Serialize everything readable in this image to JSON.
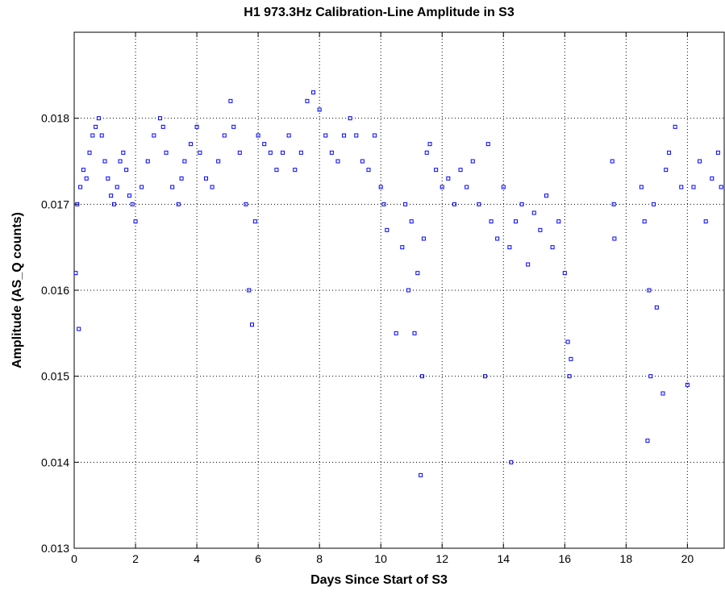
{
  "chart_data": {
    "type": "scatter",
    "title": "H1 973.3Hz Calibration-Line Amplitude in S3",
    "xlabel": "Days Since Start of S3",
    "ylabel": "Amplitude (AS_Q counts)",
    "color": "#0000ff",
    "grid": true,
    "xlim": [
      0,
      21.2
    ],
    "ylim": [
      0.013,
      0.019
    ],
    "xticks": [
      0,
      2,
      4,
      6,
      8,
      10,
      12,
      14,
      16,
      18,
      20
    ],
    "yticks": [
      0.013,
      0.014,
      0.015,
      0.016,
      0.017,
      0.018
    ],
    "x": [
      0.05,
      0.1,
      0.15,
      0.2,
      0.3,
      0.4,
      0.5,
      0.6,
      0.7,
      0.8,
      0.9,
      1.0,
      1.1,
      1.2,
      1.3,
      1.4,
      1.5,
      1.6,
      1.7,
      1.8,
      1.9,
      2.0,
      2.2,
      2.4,
      2.6,
      2.8,
      2.9,
      3.0,
      3.2,
      3.4,
      3.5,
      3.6,
      3.8,
      4.0,
      4.1,
      4.3,
      4.5,
      4.7,
      4.9,
      5.1,
      5.2,
      5.4,
      5.6,
      5.7,
      5.8,
      5.9,
      6.0,
      6.2,
      6.4,
      6.6,
      6.8,
      7.0,
      7.2,
      7.4,
      7.6,
      7.8,
      8.0,
      8.2,
      8.4,
      8.6,
      8.8,
      9.0,
      9.2,
      9.4,
      9.6,
      9.8,
      10.0,
      10.1,
      10.2,
      10.5,
      10.7,
      10.8,
      10.9,
      11.0,
      11.1,
      11.2,
      11.3,
      11.35,
      11.4,
      11.5,
      11.6,
      11.8,
      12.0,
      12.2,
      12.4,
      12.6,
      12.8,
      13.0,
      13.2,
      13.4,
      13.5,
      13.6,
      13.8,
      14.0,
      14.2,
      14.25,
      14.4,
      14.6,
      14.8,
      15.0,
      15.2,
      15.4,
      15.6,
      15.8,
      16.0,
      16.1,
      16.15,
      16.2,
      17.55,
      17.6,
      17.62,
      18.5,
      18.6,
      18.7,
      18.75,
      18.8,
      18.9,
      19.0,
      19.2,
      19.3,
      19.4,
      19.6,
      19.8,
      20.0,
      20.2,
      20.4,
      20.6,
      20.8,
      21.0,
      21.1
    ],
    "values": [
      0.0162,
      0.017,
      0.01555,
      0.0172,
      0.0174,
      0.0173,
      0.0176,
      0.0178,
      0.0179,
      0.018,
      0.0178,
      0.0175,
      0.0173,
      0.0171,
      0.017,
      0.0172,
      0.0175,
      0.0176,
      0.0174,
      0.0171,
      0.017,
      0.0168,
      0.0172,
      0.0175,
      0.0178,
      0.018,
      0.0179,
      0.0176,
      0.0172,
      0.017,
      0.0173,
      0.0175,
      0.0177,
      0.0179,
      0.0176,
      0.0173,
      0.0172,
      0.0175,
      0.0178,
      0.0182,
      0.0179,
      0.0176,
      0.017,
      0.016,
      0.0156,
      0.0168,
      0.0178,
      0.0177,
      0.0176,
      0.0174,
      0.0176,
      0.0178,
      0.0174,
      0.0176,
      0.0182,
      0.0183,
      0.0181,
      0.0178,
      0.0176,
      0.0175,
      0.0178,
      0.018,
      0.0178,
      0.0175,
      0.0174,
      0.0178,
      0.0172,
      0.017,
      0.0167,
      0.0155,
      0.0165,
      0.017,
      0.016,
      0.0168,
      0.0155,
      0.0162,
      0.01385,
      0.015,
      0.0166,
      0.0176,
      0.0177,
      0.0174,
      0.0172,
      0.0173,
      0.017,
      0.0174,
      0.0172,
      0.0175,
      0.017,
      0.015,
      0.0177,
      0.0168,
      0.0166,
      0.0172,
      0.0165,
      0.014,
      0.0168,
      0.017,
      0.0163,
      0.0169,
      0.0167,
      0.0171,
      0.0165,
      0.0168,
      0.0162,
      0.0154,
      0.015,
      0.0152,
      0.0175,
      0.017,
      0.0166,
      0.0172,
      0.0168,
      0.01425,
      0.016,
      0.015,
      0.017,
      0.0158,
      0.0148,
      0.0174,
      0.0176,
      0.0179,
      0.0172,
      0.0149,
      0.0172,
      0.0175,
      0.0168,
      0.0173,
      0.0176,
      0.0172
    ]
  }
}
